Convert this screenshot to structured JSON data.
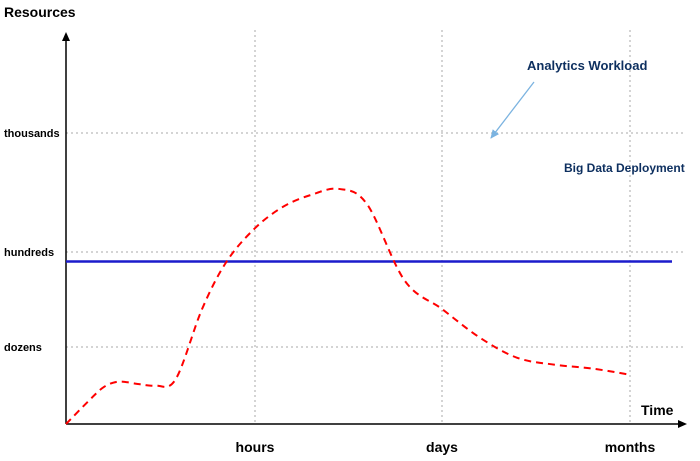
{
  "chart_data": {
    "type": "line",
    "ylabel": "Resources",
    "xlabel": "Time",
    "x_ticks": [
      "hours",
      "days",
      "months"
    ],
    "y_ticks": [
      "dozens",
      "hundreds",
      "thousands"
    ],
    "grid": true,
    "series": [
      {
        "name": "Analytics Workload",
        "style": "dashed",
        "color": "#ff0000",
        "points": [
          [
            0.0,
            0.0
          ],
          [
            0.12,
            0.3
          ],
          [
            0.2,
            0.48
          ],
          [
            0.28,
            0.55
          ],
          [
            0.38,
            0.52
          ],
          [
            0.47,
            0.5
          ],
          [
            0.58,
            0.58
          ],
          [
            0.72,
            1.4
          ],
          [
            0.85,
            1.9
          ],
          [
            1.0,
            2.2
          ],
          [
            1.15,
            2.38
          ],
          [
            1.3,
            2.48
          ],
          [
            1.45,
            2.53
          ],
          [
            1.6,
            2.4
          ],
          [
            1.8,
            1.7
          ],
          [
            2.0,
            1.4
          ],
          [
            2.2,
            1.1
          ],
          [
            2.4,
            0.86
          ],
          [
            2.6,
            0.77
          ],
          [
            2.8,
            0.72
          ],
          [
            3.0,
            0.64
          ]
        ]
      },
      {
        "name": "Big Data Deployment",
        "style": "solid",
        "color": "#1c1ccc",
        "points": [
          [
            0.0,
            1.9
          ],
          [
            3.0,
            1.9
          ]
        ]
      }
    ],
    "annotations": [
      {
        "text": "Analytics Workload",
        "color": "#0d2f5f",
        "arrow_color": "#7bb3e0"
      },
      {
        "text": "Big Data Deployment",
        "color": "#0d2f5f"
      }
    ]
  }
}
